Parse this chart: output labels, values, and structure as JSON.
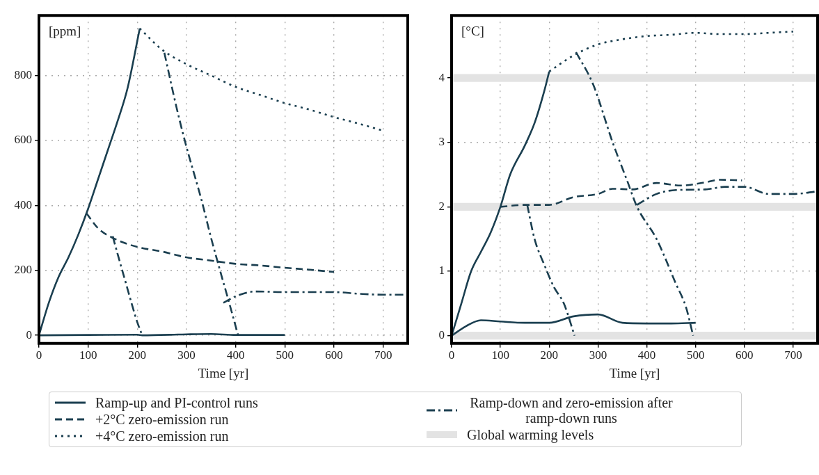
{
  "chart_data": [
    {
      "type": "line",
      "xlabel": "Time [yr]",
      "ylabel": "[ppm]",
      "xlim": [
        0,
        750
      ],
      "xticks": [
        0,
        100,
        200,
        300,
        400,
        500,
        600,
        700
      ],
      "ylim": [
        -25,
        985
      ],
      "yticks": [
        0,
        200,
        400,
        600,
        800
      ],
      "grid": true,
      "legend": "bottom",
      "marker": "none",
      "series": [
        {
          "name": "Ramp-up and PI-control runs",
          "color": "#1b3f50",
          "line_style": "solid",
          "x": [
            0,
            20,
            40,
            60,
            80,
            100,
            120,
            140,
            160,
            180,
            205
          ],
          "values": [
            0,
            100,
            180,
            240,
            310,
            390,
            480,
            570,
            660,
            760,
            945
          ]
        },
        {
          "color": "#1b3f50",
          "line_style": "solid",
          "x": [
            0,
            100,
            200,
            210,
            300,
            350,
            400,
            500
          ],
          "values": [
            0,
            1,
            2,
            0,
            3,
            4,
            1,
            1
          ]
        },
        {
          "name": "+2°C zero-emission run",
          "color": "#1b3f50",
          "line_style": "dashed",
          "x": [
            97,
            120,
            150,
            200,
            250,
            300,
            350,
            400,
            450,
            500,
            550,
            600
          ],
          "values": [
            375,
            330,
            300,
            272,
            258,
            240,
            230,
            220,
            215,
            208,
            202,
            195
          ]
        },
        {
          "name": "+4°C zero-emission run",
          "color": "#1b3f50",
          "line_style": "dotted",
          "x": [
            205,
            250,
            300,
            350,
            400,
            450,
            500,
            550,
            600,
            650,
            700
          ],
          "values": [
            945,
            880,
            835,
            800,
            765,
            740,
            715,
            695,
            672,
            652,
            630
          ]
        },
        {
          "name": "Ramp-down and zero-emission after ramp-down runs",
          "color": "#1b3f50",
          "line_style": "dashdot",
          "x": [
            150,
            160,
            175,
            190,
            200,
            210
          ],
          "values": [
            305,
            250,
            170,
            90,
            40,
            0
          ]
        },
        {
          "color": "#1b3f50",
          "line_style": "dashdot",
          "x": [
            255,
            280,
            300,
            330,
            350,
            370,
            385,
            405
          ],
          "values": [
            870,
            700,
            580,
            420,
            300,
            190,
            110,
            0
          ]
        },
        {
          "color": "#1b3f50",
          "line_style": "dashdot",
          "x": [
            375,
            400,
            440,
            500,
            600,
            650,
            700,
            750
          ],
          "values": [
            100,
            120,
            135,
            133,
            133,
            128,
            125,
            125
          ]
        }
      ]
    },
    {
      "type": "line",
      "xlabel": "Time [yr]",
      "ylabel": "[°C]",
      "xlim": [
        0,
        750
      ],
      "xticks": [
        0,
        100,
        200,
        300,
        400,
        500,
        600,
        700
      ],
      "ylim": [
        -0.12,
        4.97
      ],
      "yticks": [
        0,
        1,
        2,
        3,
        4
      ],
      "grid": true,
      "marker": "none",
      "bands": [
        {
          "axis": "y",
          "from": -0.06,
          "to": 0.06,
          "label": "Global warming levels",
          "color": "#e3e3e3"
        },
        {
          "axis": "y",
          "from": 1.94,
          "to": 2.06,
          "color": "#e3e3e3"
        },
        {
          "axis": "y",
          "from": 3.94,
          "to": 4.06,
          "color": "#e3e3e3"
        }
      ],
      "series": [
        {
          "color": "#1b3f50",
          "line_style": "solid",
          "x": [
            0,
            20,
            40,
            60,
            80,
            100,
            120,
            150,
            170,
            190,
            200
          ],
          "values": [
            0,
            0.5,
            1.0,
            1.3,
            1.6,
            2.0,
            2.5,
            2.95,
            3.3,
            3.8,
            4.1
          ]
        },
        {
          "color": "#1b3f50",
          "line_style": "solid",
          "x": [
            0,
            30,
            60,
            100,
            150,
            200,
            250,
            300,
            350,
            400,
            450,
            500
          ],
          "values": [
            0,
            0.15,
            0.24,
            0.22,
            0.2,
            0.2,
            0.3,
            0.33,
            0.2,
            0.19,
            0.19,
            0.2
          ]
        },
        {
          "color": "#1b3f50",
          "line_style": "dashed",
          "x": [
            100,
            150,
            200,
            250,
            300,
            330,
            370,
            420,
            470,
            520,
            550,
            595
          ],
          "values": [
            2.0,
            2.03,
            2.03,
            2.15,
            2.2,
            2.28,
            2.27,
            2.37,
            2.33,
            2.38,
            2.42,
            2.41
          ]
        },
        {
          "color": "#1b3f50",
          "line_style": "dotted",
          "x": [
            200,
            250,
            300,
            350,
            400,
            450,
            500,
            550,
            600,
            650,
            700
          ],
          "values": [
            4.1,
            4.35,
            4.52,
            4.6,
            4.65,
            4.67,
            4.7,
            4.68,
            4.68,
            4.7,
            4.72
          ]
        },
        {
          "color": "#1b3f50",
          "line_style": "dashdot",
          "x": [
            155,
            170,
            190,
            210,
            230,
            252
          ],
          "values": [
            2.03,
            1.5,
            1.1,
            0.75,
            0.5,
            0
          ]
        },
        {
          "color": "#1b3f50",
          "line_style": "dashdot",
          "x": [
            255,
            290,
            330,
            360,
            380,
            420,
            460,
            480,
            495
          ],
          "values": [
            4.4,
            3.9,
            3.0,
            2.4,
            2.0,
            1.5,
            0.8,
            0.45,
            0
          ]
        },
        {
          "color": "#1b3f50",
          "line_style": "dashdot",
          "x": [
            380,
            420,
            460,
            520,
            560,
            600,
            650,
            700,
            750
          ],
          "values": [
            2.03,
            2.2,
            2.26,
            2.27,
            2.31,
            2.31,
            2.2,
            2.2,
            2.24
          ]
        }
      ]
    }
  ]
}
